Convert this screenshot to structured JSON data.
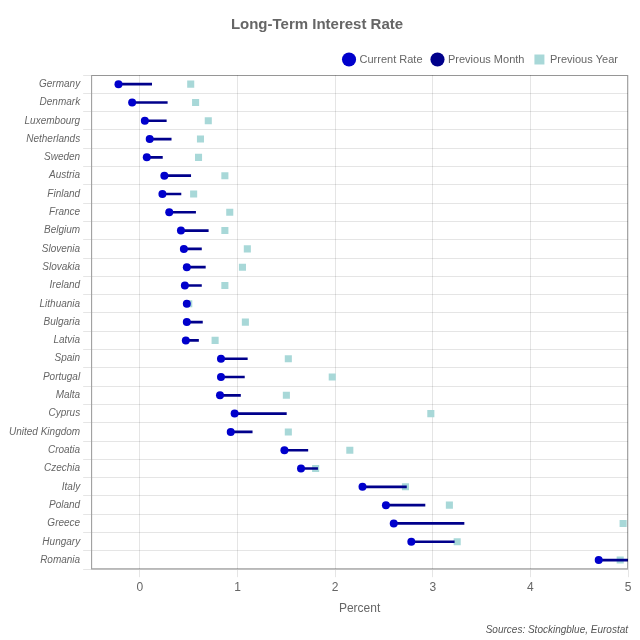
{
  "chart_data": {
    "type": "dot",
    "orientation": "horizontal",
    "title": "Long-Term Interest Rate",
    "x_label": "Percent",
    "annotations": [
      "Sources: Stockingblue, Eurostat"
    ],
    "categories": [
      "Germany",
      "Denmark",
      "Luxembourg",
      "Netherlands",
      "Sweden",
      "Austria",
      "Finland",
      "France",
      "Belgium",
      "Slovenia",
      "Slovakia",
      "Ireland",
      "Lithuania",
      "Bulgaria",
      "Latvia",
      "Spain",
      "Portugal",
      "Malta",
      "Cyprus",
      "United Kingdom",
      "Croatia",
      "Czechia",
      "Italy",
      "Poland",
      "Greece",
      "Hungary",
      "Romania"
    ],
    "series": [
      {
        "name": "Current Rate",
        "type": "scatter",
        "marker": "circle",
        "color": "#0000CC",
        "values": [
          -0.22,
          -0.08,
          0.05,
          0.1,
          0.07,
          0.25,
          0.23,
          0.3,
          0.42,
          0.45,
          0.48,
          0.46,
          0.48,
          0.48,
          0.47,
          0.83,
          0.83,
          0.82,
          0.97,
          0.93,
          1.48,
          1.65,
          2.28,
          2.52,
          2.6,
          2.78,
          4.7
        ]
      },
      {
        "name": "Previous Month",
        "type": "bar",
        "color": "#00008B",
        "values": [
          0.12,
          0.28,
          0.27,
          0.32,
          0.23,
          0.52,
          0.42,
          0.57,
          0.7,
          0.63,
          0.67,
          0.63,
          0.48,
          0.64,
          0.6,
          1.1,
          1.07,
          1.03,
          1.5,
          1.15,
          1.72,
          1.82,
          2.73,
          2.92,
          3.32,
          3.22,
          5.0
        ]
      },
      {
        "name": "Previous Year",
        "type": "scatter",
        "marker": "square",
        "color": "#A8D8D8",
        "values": [
          0.52,
          0.57,
          0.7,
          0.62,
          0.6,
          0.87,
          0.55,
          0.92,
          0.87,
          1.1,
          1.05,
          0.87,
          0.5,
          1.08,
          0.77,
          1.52,
          1.97,
          1.5,
          2.98,
          1.52,
          2.15,
          1.8,
          2.72,
          3.17,
          4.95,
          3.25,
          4.92
        ]
      }
    ],
    "xlim": [
      -0.5,
      5.0
    ],
    "xticks": [
      0,
      1,
      2,
      3,
      4,
      5
    ],
    "grid": true,
    "legend": "upper right"
  }
}
